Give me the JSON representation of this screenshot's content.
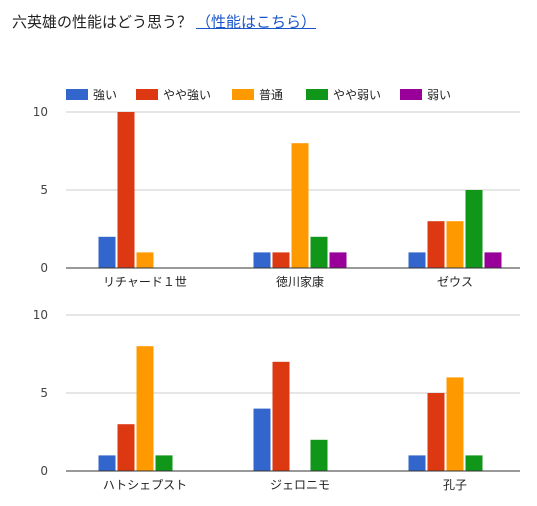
{
  "header": {
    "title": "六英雄の性能はどう思う？",
    "link": "（性能はこちら）"
  },
  "chart_data": {
    "type": "bar",
    "legend_position": "top-left",
    "grid": true,
    "ylim": [
      0,
      10
    ],
    "yticks": [
      "0",
      "5",
      "10"
    ],
    "series": [
      {
        "name": "強い",
        "color": "#3366cc"
      },
      {
        "name": "やや強い",
        "color": "#dc3912"
      },
      {
        "name": "普通",
        "color": "#ff9900"
      },
      {
        "name": "やや弱い",
        "color": "#109618"
      },
      {
        "name": "弱い",
        "color": "#990099"
      }
    ],
    "panels": [
      {
        "categories": [
          "リチャード１世",
          "徳川家康",
          "ゼウス"
        ],
        "values": [
          [
            2,
            10,
            1,
            0,
            0
          ],
          [
            1,
            1,
            8,
            2,
            1
          ],
          [
            1,
            3,
            3,
            5,
            1
          ]
        ]
      },
      {
        "categories": [
          "ハトシェプスト",
          "ジェロニモ",
          "孔子"
        ],
        "values": [
          [
            1,
            3,
            8,
            1,
            0
          ],
          [
            4,
            7,
            0,
            2,
            0
          ],
          [
            1,
            5,
            6,
            1,
            0
          ]
        ]
      }
    ]
  }
}
